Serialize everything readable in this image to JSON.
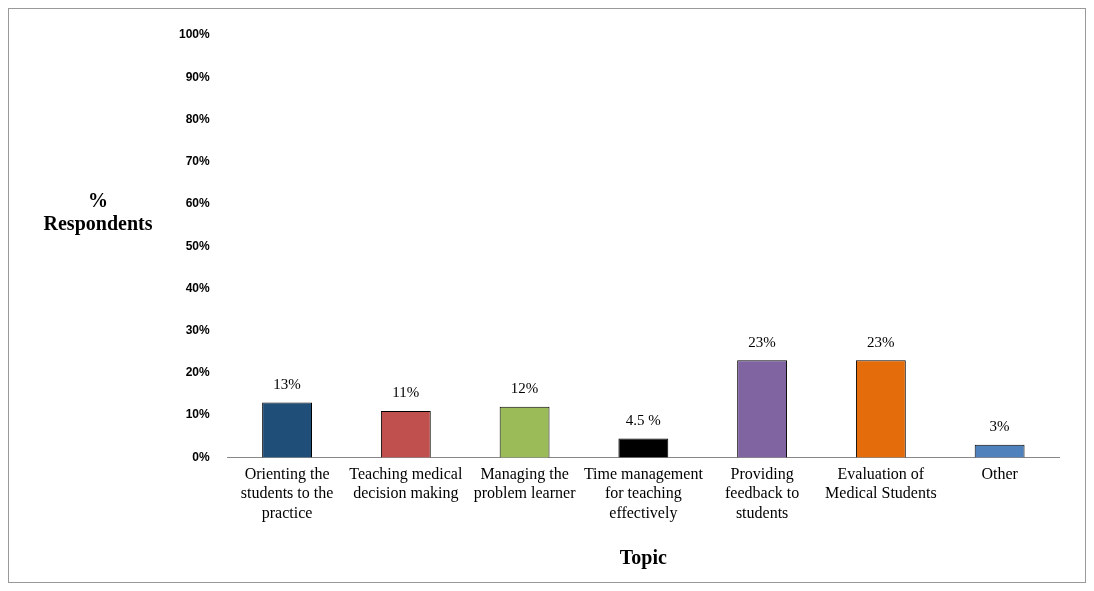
{
  "chart_data": {
    "type": "bar",
    "xlabel": "Topic",
    "ylabel": "% Respondents",
    "categories": [
      "Orienting the students to the practice",
      "Teaching medical decision making",
      "Managing the problem learner",
      "Time management for teaching effectively",
      "Providing feedback to students",
      "Evaluation of Medical Students",
      "Other"
    ],
    "values": [
      13,
      11,
      12,
      4.5,
      23,
      23,
      3
    ],
    "colors": [
      "#1f4e79",
      "#c0504d",
      "#9bbb59",
      "#000000",
      "#8064a2",
      "#e46c0a",
      "#4f81bd"
    ],
    "value_labels": [
      "13%",
      "11%",
      "12%",
      "4.5 %",
      "23%",
      "23%",
      "3%"
    ],
    "ylim": [
      0,
      100
    ],
    "yticks": [
      {
        "value": 0,
        "label": "0%"
      },
      {
        "value": 10,
        "label": "10%"
      },
      {
        "value": 20,
        "label": "20%"
      },
      {
        "value": 30,
        "label": "30%"
      },
      {
        "value": 40,
        "label": "40%"
      },
      {
        "value": 50,
        "label": "50%"
      },
      {
        "value": 60,
        "label": "60%"
      },
      {
        "value": 70,
        "label": "70%"
      },
      {
        "value": 80,
        "label": "80%"
      },
      {
        "value": 90,
        "label": "90%"
      },
      {
        "value": 100,
        "label": "100%"
      }
    ],
    "grid": false,
    "legend": false
  }
}
